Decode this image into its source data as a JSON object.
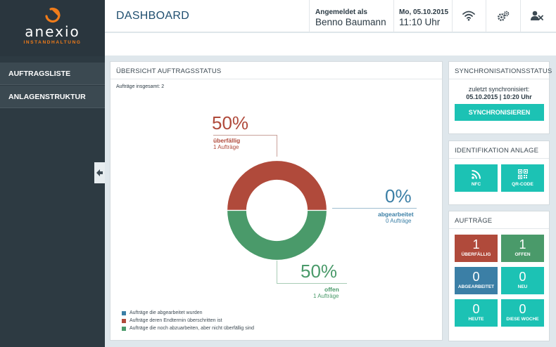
{
  "brand": {
    "name": "anexio",
    "subtitle": "INSTANDHALTUNG",
    "accent": "#f07c1a"
  },
  "sidebar": {
    "items": [
      {
        "label": "AUFTRAGSLISTE"
      },
      {
        "label": "ANLAGENSTRUKTUR"
      }
    ],
    "collapse_icon": "arrow-left-icon"
  },
  "header": {
    "title": "DASHBOARD",
    "user_label": "Angemeldet als",
    "user_name": "Benno Baumann",
    "date": "Mo, 05.10.2015",
    "time": "11:10 Uhr",
    "icons": [
      "wifi-icon",
      "gears-icon",
      "user-logout-icon"
    ]
  },
  "overview": {
    "title": "ÜBERSICHT AUFTRAGSSTATUS",
    "total": "Aufträge insgesamt: 2",
    "segments": [
      {
        "key": "ueberfaellig",
        "pct": "50%",
        "label": "überfällig",
        "count": "1 Aufträge",
        "value": 50,
        "color": "#b04a3b"
      },
      {
        "key": "abgearbeitet",
        "pct": "0%",
        "label": "abgearbeitet",
        "count": "0 Aufträge",
        "value": 0,
        "color": "#3b7fa6"
      },
      {
        "key": "offen",
        "pct": "50%",
        "label": "offen",
        "count": "1 Aufträge",
        "value": 50,
        "color": "#4a9a6a"
      }
    ],
    "legend": [
      {
        "text": "Aufträge die abgearbeitet wurden",
        "color": "#3b7fa6"
      },
      {
        "text": "Aufträge deren Endtermin überschritten ist",
        "color": "#b04a3b"
      },
      {
        "text": "Aufträge die noch abzuarbeiten, aber nicht überfällig sind",
        "color": "#4a9a6a"
      }
    ]
  },
  "sync": {
    "title": "SYNCHRONISATIONSSTATUS",
    "last_label": "zuletzt synchronisiert:",
    "last_date": "05.10.2015 | 10:20 Uhr",
    "button": "SYNCHRONISIEREN",
    "color": "#1cc2b4"
  },
  "ident": {
    "title": "IDENTIFIKATION ANLAGE",
    "tiles": [
      {
        "label": "NFC",
        "icon": "nfc-icon"
      },
      {
        "label": "QR-CODE",
        "icon": "qr-code-icon"
      }
    ]
  },
  "orders": {
    "title": "AUFTRÄGE",
    "tiles": [
      {
        "value": "1",
        "label": "ÜBERFÄLLIG",
        "color": "#b04a3b"
      },
      {
        "value": "1",
        "label": "OFFEN",
        "color": "#4a9a6a"
      },
      {
        "value": "0",
        "label": "ABGEARBEITET",
        "color": "#3b7fa6"
      },
      {
        "value": "0",
        "label": "NEU",
        "color": "#1cc2b4"
      },
      {
        "value": "0",
        "label": "HEUTE",
        "color": "#1cc2b4"
      },
      {
        "value": "0",
        "label": "DIESE WOCHE",
        "color": "#1cc2b4"
      }
    ]
  }
}
